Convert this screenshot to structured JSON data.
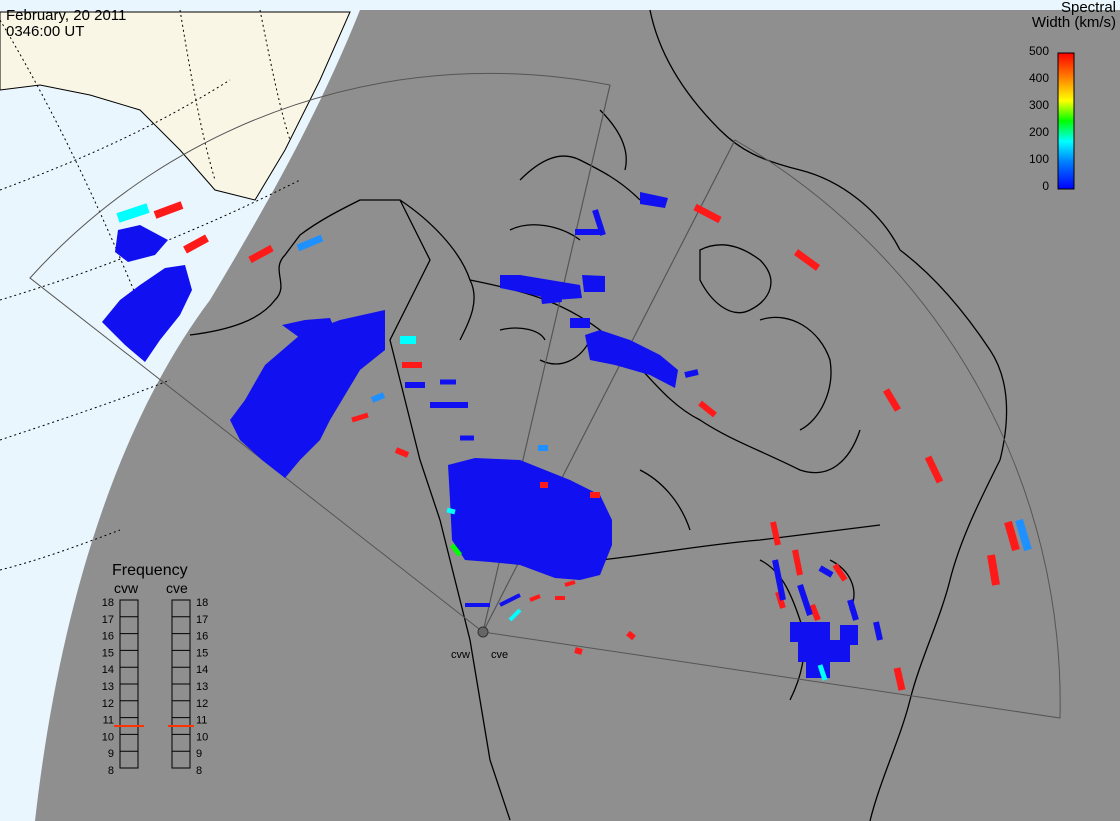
{
  "header": {
    "date": "February, 20 2011",
    "time": "0346:00 UT"
  },
  "colorbar": {
    "title_line1": "Spectral",
    "title_line2": "Width (km/s)",
    "ticks": [
      "500",
      "400",
      "300",
      "200",
      "100",
      "0"
    ],
    "stops": [
      "#0000ff",
      "#0080ff",
      "#00ffff",
      "#00ff00",
      "#ffff00",
      "#ff8000",
      "#ff0000"
    ]
  },
  "frequency_panel": {
    "title": "Frequency",
    "left_label": "cvw",
    "right_label": "cve",
    "scale": [
      "18",
      "17",
      "16",
      "15",
      "14",
      "13",
      "12",
      "11",
      "10",
      "9",
      "8"
    ],
    "cvw_value": 11,
    "cve_value": 11,
    "marker_color": "#ff3300"
  },
  "radar_site": {
    "labels": [
      "cvw",
      "cve"
    ]
  },
  "colors": {
    "night": "#8f8f8f",
    "day": "#eaf6fd",
    "land_day": "#faf6e6",
    "low_width": "#1010f0",
    "high_width": "#ff1a1a",
    "mid_width": "#00ffff"
  }
}
